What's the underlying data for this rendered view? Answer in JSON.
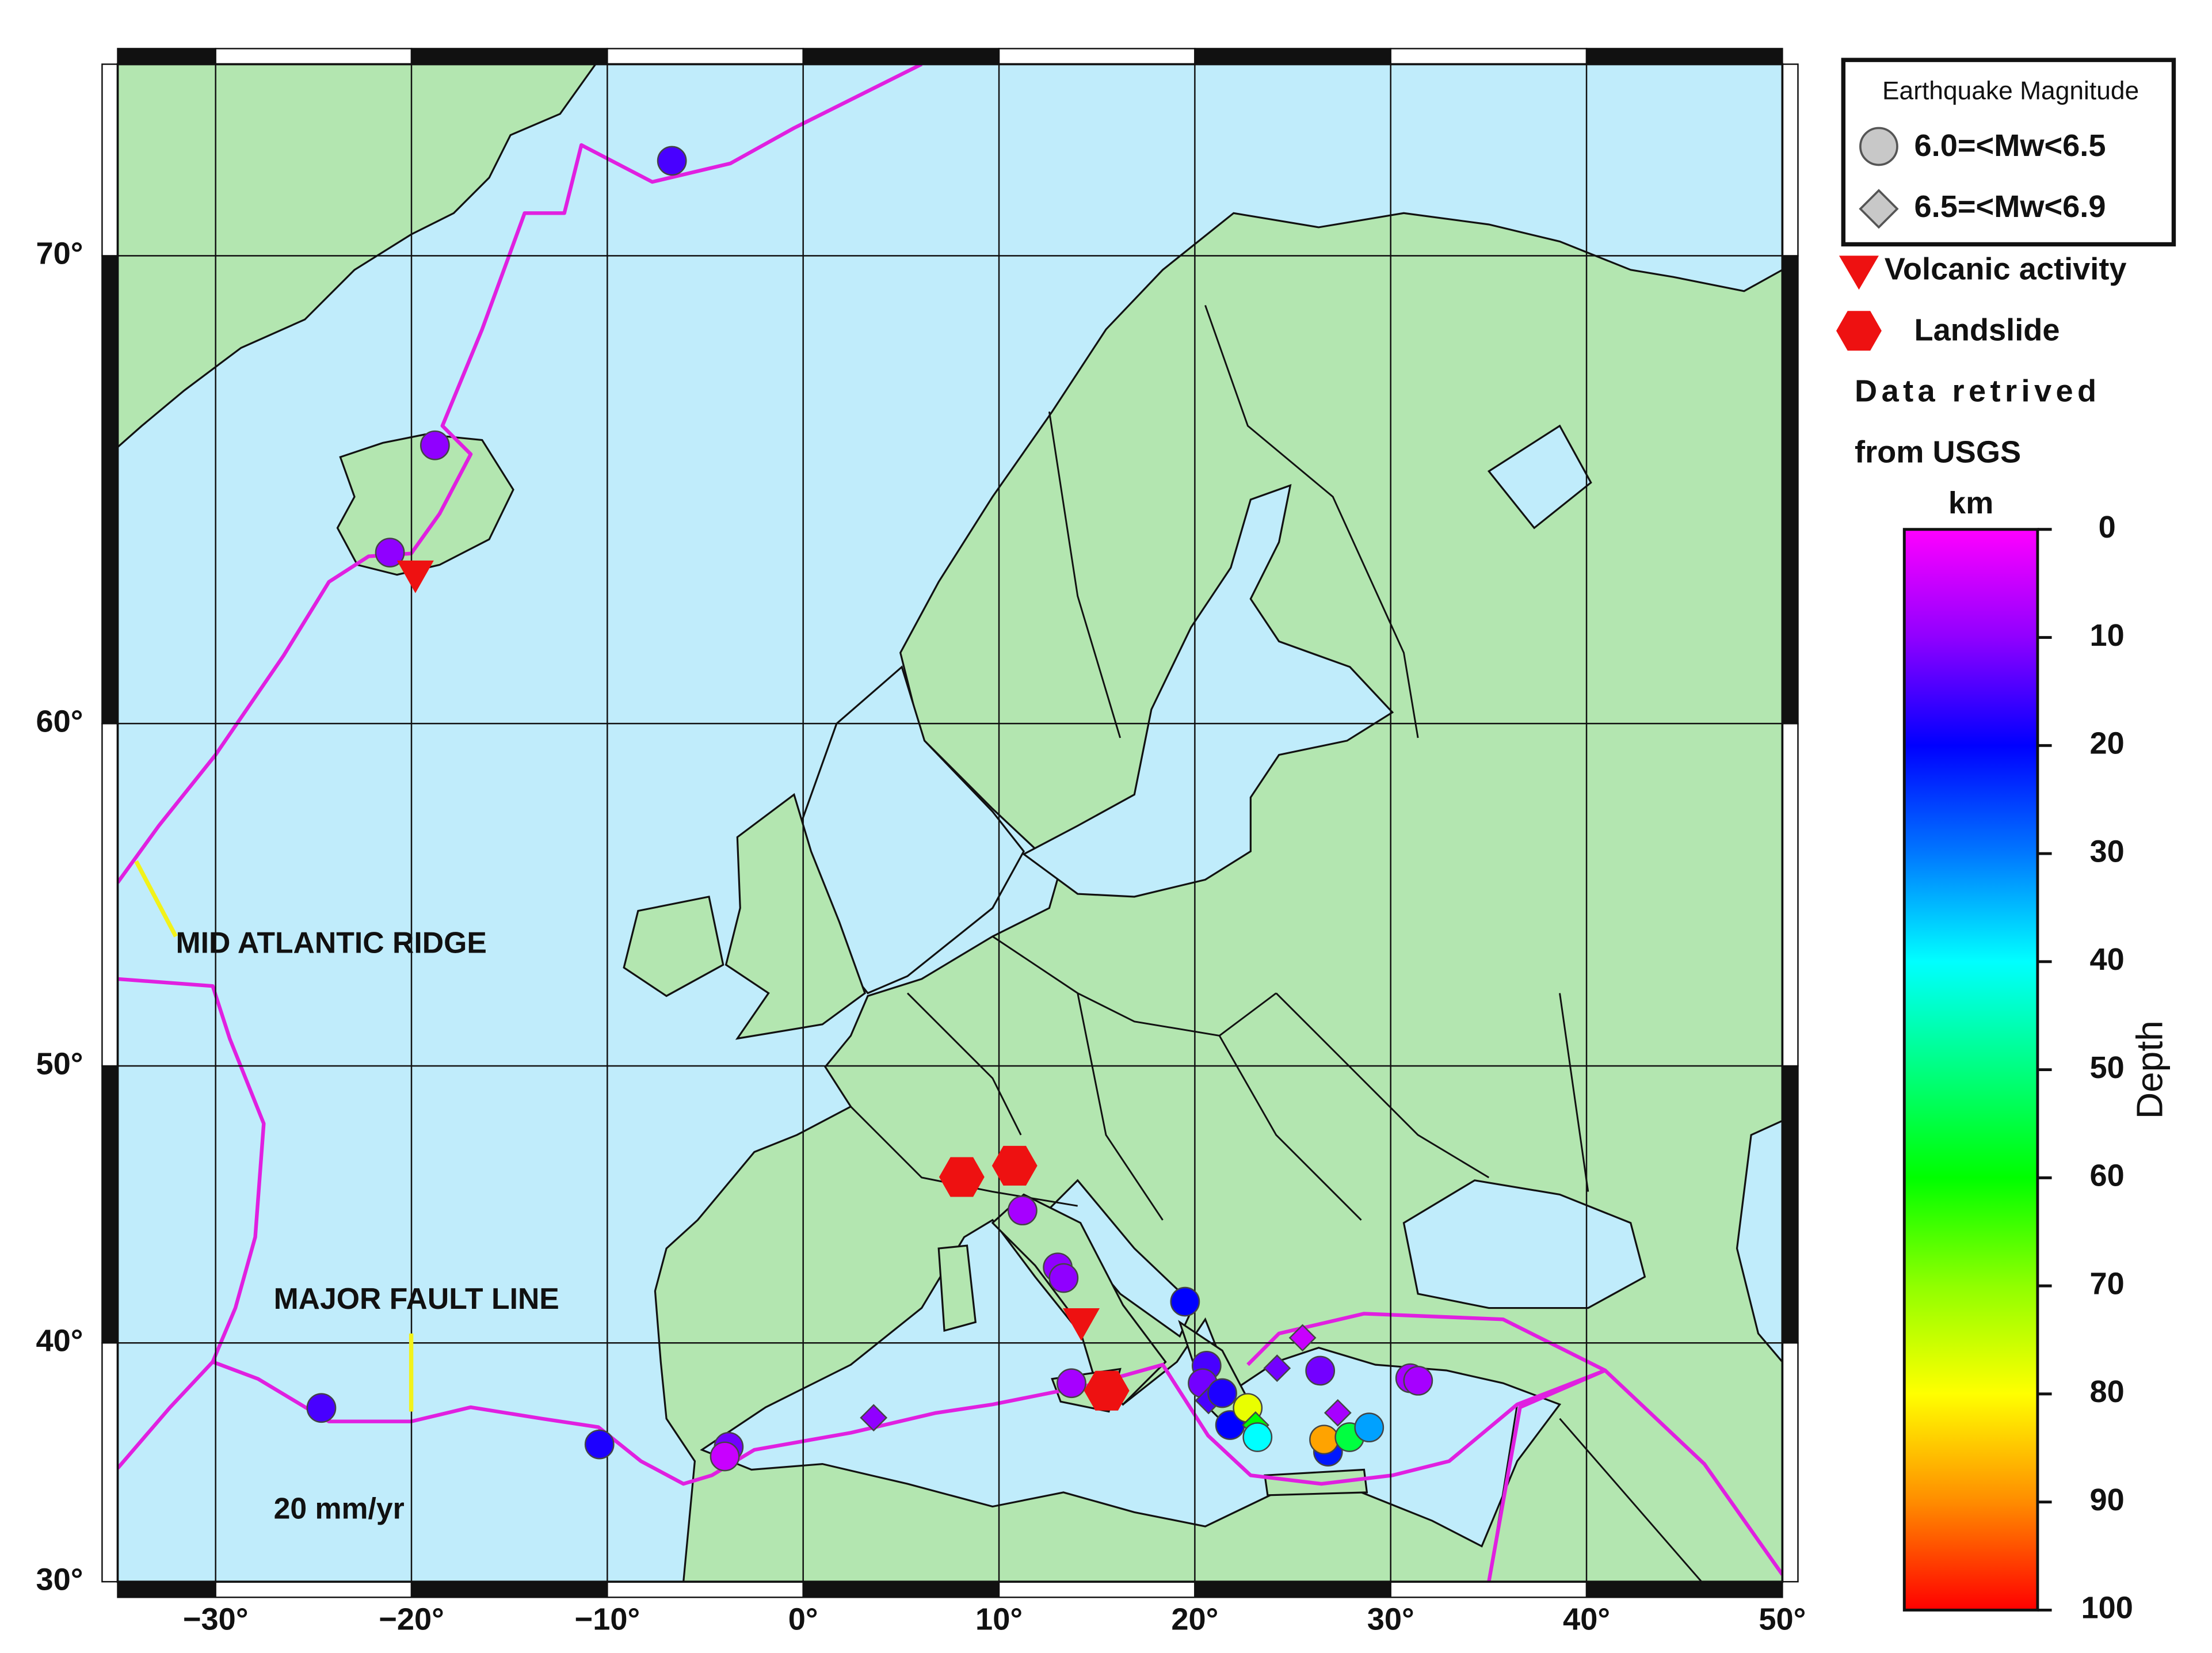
{
  "map": {
    "xlim": [
      -35,
      50
    ],
    "ylim": [
      30,
      73.1
    ],
    "xticks": [
      {
        "value": -30,
        "label": "−30°"
      },
      {
        "value": -20,
        "label": "−20°"
      },
      {
        "value": -10,
        "label": "−10°"
      },
      {
        "value": 0,
        "label": "0°"
      },
      {
        "value": 10,
        "label": "10°"
      },
      {
        "value": 20,
        "label": "20°"
      },
      {
        "value": 30,
        "label": "30°"
      },
      {
        "value": 40,
        "label": "40°"
      },
      {
        "value": 50,
        "label": "50°"
      }
    ],
    "yticks": [
      {
        "value": 30,
        "label": "30°"
      },
      {
        "value": 40,
        "label": "40°"
      },
      {
        "value": 50,
        "label": "50°"
      },
      {
        "value": 60,
        "label": "60°"
      },
      {
        "value": 70,
        "label": "70°"
      }
    ],
    "projection": "mercator",
    "grid": true,
    "annotations": [
      "MID ATLANTIC RIDGE",
      "MAJOR FAULT LINE",
      "20 mm/yr"
    ],
    "events": [
      {
        "kind": "circle",
        "lon": -6.7,
        "lat": 71.6,
        "depth": 15
      },
      {
        "kind": "circle",
        "lon": -18.8,
        "lat": 66.4,
        "depth": 10
      },
      {
        "kind": "circle",
        "lon": -21.1,
        "lat": 64.1,
        "depth": 10
      },
      {
        "kind": "volcano",
        "lon": -19.8,
        "lat": 63.6
      },
      {
        "kind": "circle",
        "lon": -24.6,
        "lat": 37.4,
        "depth": 15
      },
      {
        "kind": "circle",
        "lon": -10.4,
        "lat": 35.9,
        "depth": 18
      },
      {
        "kind": "circle",
        "lon": -3.8,
        "lat": 35.8,
        "depth": 12
      },
      {
        "kind": "circle",
        "lon": -4.0,
        "lat": 35.4,
        "depth": 5
      },
      {
        "kind": "diamond",
        "lon": 3.6,
        "lat": 37.0,
        "depth": 10
      },
      {
        "kind": "landslide",
        "lon": 8.1,
        "lat": 46.2
      },
      {
        "kind": "landslide",
        "lon": 10.8,
        "lat": 46.6
      },
      {
        "kind": "circle",
        "lon": 11.2,
        "lat": 45.0,
        "depth": 8
      },
      {
        "kind": "circle",
        "lon": 13.0,
        "lat": 42.9,
        "depth": 10
      },
      {
        "kind": "circle",
        "lon": 13.3,
        "lat": 42.5,
        "depth": 10
      },
      {
        "kind": "volcano",
        "lon": 14.2,
        "lat": 40.8
      },
      {
        "kind": "circle",
        "lon": 13.7,
        "lat": 38.4,
        "depth": 8
      },
      {
        "kind": "landslide",
        "lon": 15.5,
        "lat": 38.1
      },
      {
        "kind": "circle",
        "lon": 19.5,
        "lat": 41.6,
        "depth": 20
      },
      {
        "kind": "circle",
        "lon": 20.6,
        "lat": 39.1,
        "depth": 15
      },
      {
        "kind": "circle",
        "lon": 20.4,
        "lat": 38.4,
        "depth": 12
      },
      {
        "kind": "diamond",
        "lon": 20.7,
        "lat": 37.7,
        "depth": 15
      },
      {
        "kind": "circle",
        "lon": 21.4,
        "lat": 38.0,
        "depth": 18
      },
      {
        "kind": "circle",
        "lon": 21.8,
        "lat": 36.7,
        "depth": 20
      },
      {
        "kind": "circle",
        "lon": 22.7,
        "lat": 37.4,
        "depth": 78
      },
      {
        "kind": "diamond",
        "lon": 23.1,
        "lat": 36.7,
        "depth": 60
      },
      {
        "kind": "circle",
        "lon": 23.2,
        "lat": 36.2,
        "depth": 40
      },
      {
        "kind": "diamond",
        "lon": 25.5,
        "lat": 40.2,
        "depth": 5
      },
      {
        "kind": "diamond",
        "lon": 24.2,
        "lat": 39.0,
        "depth": 12
      },
      {
        "kind": "circle",
        "lon": 26.4,
        "lat": 38.9,
        "depth": 12
      },
      {
        "kind": "diamond",
        "lon": 27.3,
        "lat": 37.2,
        "depth": 8
      },
      {
        "kind": "circle",
        "lon": 26.8,
        "lat": 35.6,
        "depth": 22
      },
      {
        "kind": "circle",
        "lon": 26.6,
        "lat": 36.1,
        "depth": 88
      },
      {
        "kind": "circle",
        "lon": 27.9,
        "lat": 36.2,
        "depth": 55
      },
      {
        "kind": "circle",
        "lon": 28.9,
        "lat": 36.6,
        "depth": 33
      },
      {
        "kind": "circle",
        "lon": 31.0,
        "lat": 38.6,
        "depth": 8
      },
      {
        "kind": "circle",
        "lon": 31.4,
        "lat": 38.5,
        "depth": 8
      }
    ]
  },
  "legend": {
    "title": "Earthquake Magnitude",
    "circle": "6.0=<Mw<6.5",
    "diamond": "6.5=<Mw<6.9",
    "volcano": "Volcanic activity",
    "landslide": "Landslide",
    "source_1": "Data retrived",
    "source_2": "from USGS"
  },
  "colorbar": {
    "unit": "km",
    "label": "Depth",
    "lim": [
      0,
      100
    ],
    "ticks": [
      0,
      10,
      20,
      30,
      40,
      50,
      60,
      70,
      80,
      90,
      100
    ]
  }
}
